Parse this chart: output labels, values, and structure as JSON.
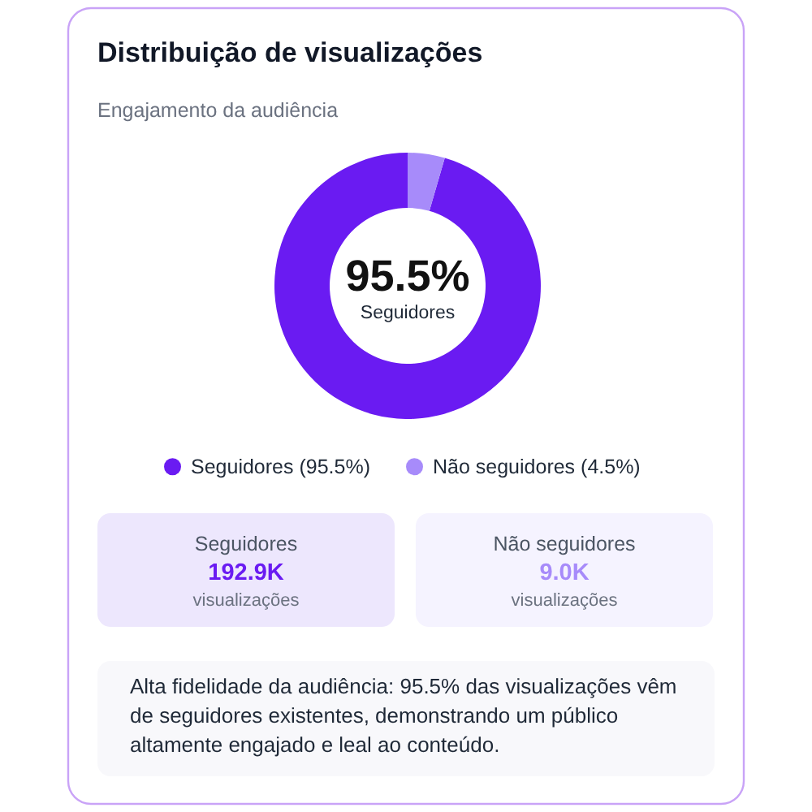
{
  "chart_data": {
    "type": "donut",
    "title": "Distribuição de visualizações",
    "subtitle": "Engajamento da audiência",
    "categories": [
      "Seguidores (95.5%)",
      "Não seguidores (4.5%)"
    ],
    "values": [
      95.5,
      4.5
    ],
    "colors": [
      "#6a1bf2",
      "#a78bfa"
    ],
    "legend": "bottom",
    "annotations": [
      "95.5%",
      "Seguidores",
      "Seguidores",
      "192.9K",
      "visualizações",
      "Não seguidores",
      "9.0K",
      "visualizações",
      "Alta fidelidade da audiência: 95.5% das visualizações vêm de seguidores existentes, demonstrando um público altamente engajado e leal ao conteúdo."
    ]
  }
}
